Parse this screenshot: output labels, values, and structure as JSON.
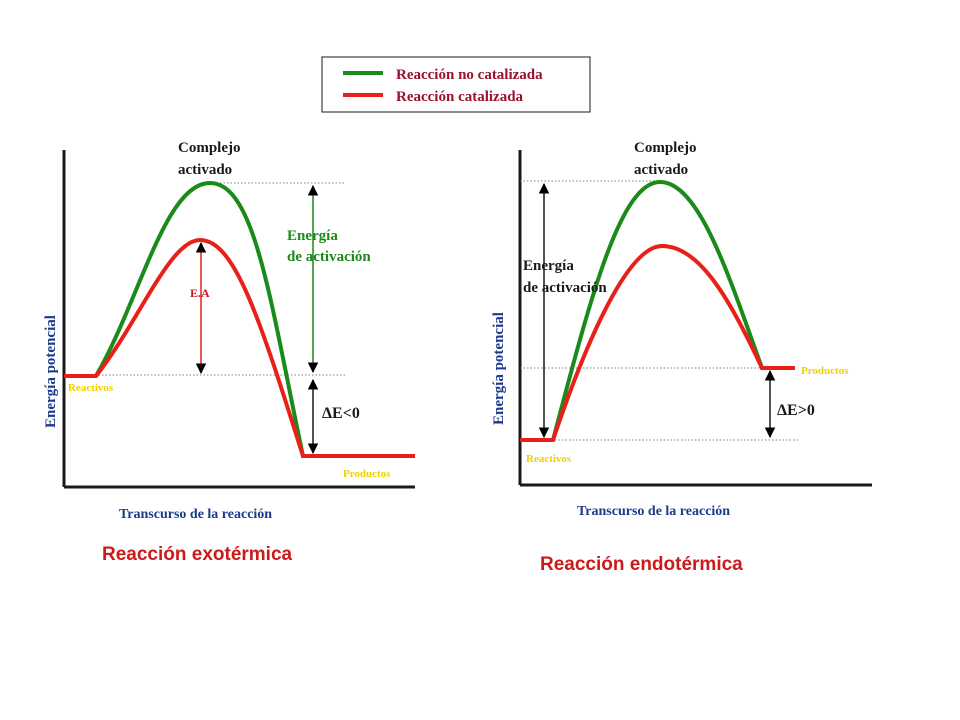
{
  "legend": {
    "uncatalyzed": "Reacción no catalizada",
    "catalyzed": "Reacción  catalizada"
  },
  "exo": {
    "complejo_line1": "Complejo",
    "complejo_line2": "activado",
    "energia_line1": "Energía",
    "energia_line2": "de activación",
    "ea_label": "E.A",
    "delta_label": "ΔE<0",
    "reactivos": "Reactivos",
    "productos": "Productos",
    "y_axis_label": "Energía potencial",
    "x_axis_label": "Transcurso de la reacción",
    "title": "Reacción  exotérmica"
  },
  "endo": {
    "complejo_line1": "Complejo",
    "complejo_line2": "activado",
    "energia_line1": "Energía",
    "energia_line2": "de activación",
    "delta_label": "ΔE>0",
    "reactivos": "Reactivos",
    "productos": "Productos",
    "y_axis_label": "Energía potencial",
    "x_axis_label": "Transcurso de la reacción",
    "title": "Reacción  endotérmica"
  },
  "colors": {
    "uncatalyzed": "#1a8a1a",
    "catalyzed": "#e8201a",
    "legend_text": "#9a1030",
    "label_text": "#1a1a1a",
    "green_label": "#1a8a1a",
    "red_label": "#cc1a1a",
    "axis_label": "#1b3a8c",
    "title": "#cc1a1a",
    "small_label": "#f0d000"
  }
}
